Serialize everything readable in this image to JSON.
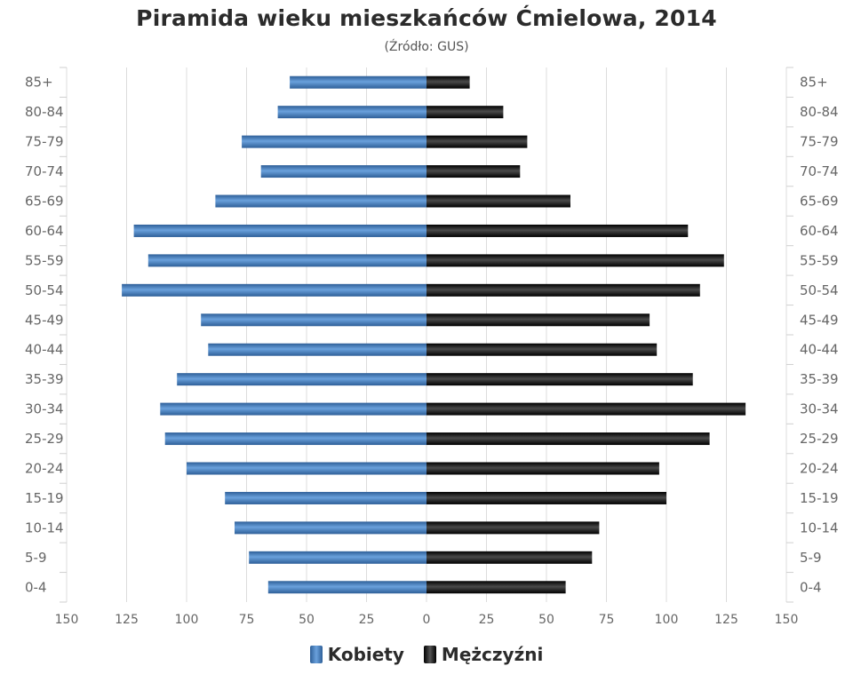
{
  "chart_data": {
    "type": "bar",
    "orientation": "horizontal-population-pyramid",
    "title": "Piramida wieku mieszkańców Ćmielowa, 2014",
    "subtitle": "(Źródło: GUS)",
    "categories": [
      "85+",
      "80-84",
      "75-79",
      "70-74",
      "65-69",
      "60-64",
      "55-59",
      "50-54",
      "45-49",
      "40-44",
      "35-39",
      "30-34",
      "25-29",
      "20-24",
      "15-19",
      "10-14",
      "5-9",
      "0-4"
    ],
    "series": [
      {
        "name": "Kobiety",
        "color": "#4a86c8",
        "side": "left",
        "values": [
          57,
          62,
          77,
          69,
          88,
          122,
          116,
          127,
          94,
          91,
          104,
          111,
          109,
          100,
          84,
          80,
          74,
          66
        ]
      },
      {
        "name": "Mężczyźni",
        "color": "#111111",
        "side": "right",
        "values": [
          18,
          32,
          42,
          39,
          60,
          109,
          124,
          114,
          93,
          96,
          111,
          133,
          118,
          97,
          100,
          72,
          69,
          58
        ]
      }
    ],
    "x_ticks": [
      "150",
      "125",
      "100",
      "75",
      "50",
      "25",
      "0",
      "25",
      "50",
      "75",
      "100",
      "125",
      "150"
    ],
    "xlim": [
      -150,
      150
    ],
    "grid": true,
    "legend_position": "bottom"
  },
  "colors": {
    "female_dark": "#2e5f98",
    "female_light": "#6aa1dc",
    "male_dark": "#000000",
    "male_light": "#555555",
    "grid": "#dcdcdc",
    "axis_text": "#666666"
  }
}
